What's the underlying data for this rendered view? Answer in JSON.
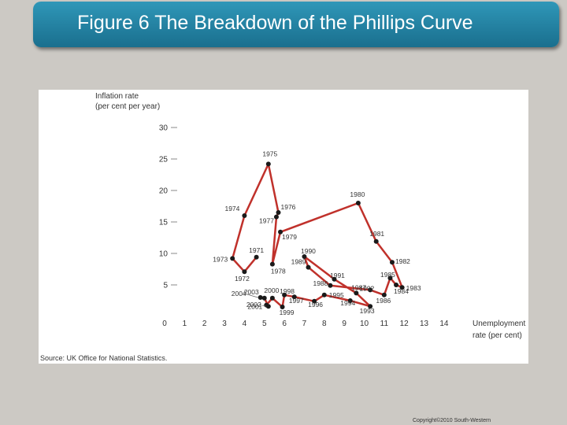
{
  "slide": {
    "title": "Figure 6 The Breakdown of the Phillips Curve",
    "copyright": "Copyright©2010 South-Western"
  },
  "colors": {
    "line": "#c0312b",
    "point": "#1a1a1a",
    "title_bar": "#1f7fa3"
  },
  "chart_data": {
    "type": "line",
    "ylabel": [
      "Inflation rate",
      "(per cent per year)"
    ],
    "xlabel": [
      "Unemployment",
      "rate (per cent)"
    ],
    "source": "Source: UK Office for National Statistics.",
    "xlim": [
      0,
      14
    ],
    "ylim": [
      0,
      30
    ],
    "x_ticks": [
      0,
      1,
      2,
      3,
      4,
      5,
      6,
      7,
      8,
      9,
      10,
      11,
      12,
      13,
      14
    ],
    "y_ticks": [
      5,
      10,
      15,
      20,
      25,
      30
    ],
    "grid": false,
    "points": [
      {
        "year": "1971",
        "x": 4.6,
        "y": 9.4
      },
      {
        "year": "1972",
        "x": 4.0,
        "y": 7.1
      },
      {
        "year": "1973",
        "x": 3.4,
        "y": 9.2
      },
      {
        "year": "1974",
        "x": 4.0,
        "y": 16.0
      },
      {
        "year": "1975",
        "x": 5.2,
        "y": 24.2
      },
      {
        "year": "1976",
        "x": 5.7,
        "y": 16.5
      },
      {
        "year": "1977",
        "x": 5.6,
        "y": 15.8
      },
      {
        "year": "1978",
        "x": 5.4,
        "y": 8.3
      },
      {
        "year": "1979",
        "x": 5.8,
        "y": 13.4
      },
      {
        "year": "1980",
        "x": 9.7,
        "y": 18.0
      },
      {
        "year": "1981",
        "x": 10.6,
        "y": 11.9
      },
      {
        "year": "1982",
        "x": 11.4,
        "y": 8.6
      },
      {
        "year": "1983",
        "x": 11.9,
        "y": 4.6
      },
      {
        "year": "1984",
        "x": 11.6,
        "y": 5.0
      },
      {
        "year": "1985",
        "x": 11.3,
        "y": 6.1
      },
      {
        "year": "1986",
        "x": 11.0,
        "y": 3.4
      },
      {
        "year": "1987",
        "x": 10.3,
        "y": 4.2
      },
      {
        "year": "1988",
        "x": 8.3,
        "y": 4.9
      },
      {
        "year": "1989",
        "x": 7.2,
        "y": 7.8
      },
      {
        "year": "1990",
        "x": 7.0,
        "y": 9.5
      },
      {
        "year": "1991",
        "x": 8.5,
        "y": 5.9
      },
      {
        "year": "1992",
        "x": 9.6,
        "y": 3.7
      },
      {
        "year": "1993",
        "x": 10.3,
        "y": 1.6
      },
      {
        "year": "1994",
        "x": 9.3,
        "y": 2.5
      },
      {
        "year": "1995",
        "x": 8.0,
        "y": 3.4
      },
      {
        "year": "1996",
        "x": 7.5,
        "y": 2.4
      },
      {
        "year": "1997",
        "x": 6.5,
        "y": 3.1
      },
      {
        "year": "1998",
        "x": 6.0,
        "y": 3.4
      },
      {
        "year": "1999",
        "x": 5.9,
        "y": 1.5
      },
      {
        "year": "2000",
        "x": 5.4,
        "y": 2.9
      },
      {
        "year": "2001",
        "x": 5.1,
        "y": 1.8
      },
      {
        "year": "2002",
        "x": 5.2,
        "y": 1.6
      },
      {
        "year": "2003",
        "x": 5.0,
        "y": 2.9
      },
      {
        "year": "2004",
        "x": 4.8,
        "y": 3.0
      }
    ]
  }
}
